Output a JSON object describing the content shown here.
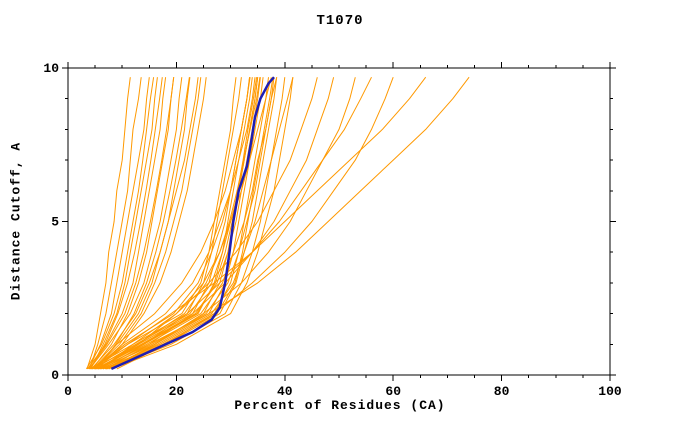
{
  "chart_data": {
    "type": "line",
    "title": "T1070",
    "xlabel": "Percent of Residues (CA)",
    "ylabel": "Distance Cutoff, A",
    "xlim": [
      0,
      100
    ],
    "ylim": [
      0,
      10
    ],
    "x_major_ticks": [
      0,
      20,
      40,
      60,
      80,
      100
    ],
    "x_minor_step": 5,
    "y_major_ticks": [
      0,
      5,
      10
    ],
    "y_minor_step": 1,
    "grid": false,
    "legend": "none",
    "colors": {
      "model_lines": "#ff9900",
      "median_line": "#1e1eb4",
      "frame": "#000000",
      "background": "#ffffff"
    },
    "model_lines_width": 1,
    "model_curves": {
      "y_stations": [
        0.2,
        1,
        2,
        3,
        4,
        5,
        6,
        7,
        8,
        9,
        9.7
      ],
      "x_values": [
        [
          3.5,
          5,
          6,
          7,
          7.5,
          8.5,
          9,
          10,
          10.5,
          11,
          11.5
        ],
        [
          4,
          5.5,
          7,
          8,
          9,
          10,
          11,
          11.5,
          12,
          13,
          13.5
        ],
        [
          3.8,
          6,
          8,
          9,
          10,
          11,
          12,
          13,
          14,
          14.5,
          15
        ],
        [
          4.2,
          6.5,
          9,
          10.5,
          11.5,
          12.5,
          13.5,
          14.5,
          15.5,
          16,
          16.5
        ],
        [
          3.6,
          7,
          10,
          12,
          13,
          14,
          15,
          16,
          17,
          17.5,
          18
        ],
        [
          4.5,
          8,
          11,
          13,
          14.5,
          15.5,
          16.5,
          17.5,
          18.5,
          19,
          19.5
        ],
        [
          4,
          7.5,
          11.5,
          14,
          15.5,
          17,
          18,
          19,
          20,
          20.5,
          21
        ],
        [
          5,
          9,
          13,
          15.5,
          17,
          18.5,
          19.5,
          20.5,
          21.5,
          22,
          22.5
        ],
        [
          4.3,
          8.5,
          12.5,
          15,
          17,
          18.5,
          20,
          21.5,
          22.5,
          23.5,
          24
        ],
        [
          5.5,
          10,
          14,
          17,
          19,
          20.5,
          22,
          23,
          24,
          25,
          25.5
        ],
        [
          3.4,
          6.2,
          8.5,
          10,
          11,
          12,
          13,
          13.8,
          14.5,
          15.2,
          15.8
        ],
        [
          4.8,
          9.5,
          13.5,
          16,
          18,
          19.5,
          21,
          22,
          23,
          24,
          24.5
        ],
        [
          3.9,
          7.2,
          10.5,
          12.5,
          14,
          15.2,
          16.3,
          17.3,
          18.2,
          19,
          19.5
        ],
        [
          4.1,
          6.8,
          9.2,
          11,
          12.3,
          13.4,
          14.4,
          15.3,
          16.1,
          16.9,
          17.4
        ],
        [
          5.2,
          8.8,
          12.2,
          14.5,
          16.2,
          17.6,
          18.8,
          19.9,
          20.9,
          21.8,
          22.4
        ],
        [
          4,
          12,
          22,
          25,
          26.5,
          27.5,
          28.5,
          29.5,
          30.5,
          31.5,
          32
        ],
        [
          5,
          14,
          24,
          27,
          28.5,
          29.5,
          30.5,
          31.5,
          32.5,
          33.5,
          34
        ],
        [
          4.5,
          13,
          23,
          26,
          27.5,
          29,
          30,
          31,
          32,
          33,
          33.5
        ],
        [
          6,
          16,
          25,
          28,
          29.5,
          30.5,
          31.5,
          32.5,
          33.5,
          34.5,
          35
        ],
        [
          5.5,
          15,
          26,
          29,
          30.5,
          31.5,
          32.5,
          33.5,
          34.5,
          35.5,
          36
        ],
        [
          4.2,
          11,
          21,
          24.5,
          26,
          27,
          28,
          29,
          30,
          30.5,
          31
        ],
        [
          6.5,
          17,
          27,
          30,
          31.5,
          32.5,
          33.5,
          34.5,
          35.5,
          36.5,
          37
        ],
        [
          5.2,
          13.5,
          23.5,
          27.5,
          29.5,
          31,
          32,
          33,
          34,
          35,
          35.5
        ],
        [
          7,
          18,
          28,
          31,
          32.5,
          34,
          35,
          36,
          37,
          38,
          38.5
        ],
        [
          4.8,
          12.5,
          22.5,
          26.5,
          28.5,
          30,
          31.5,
          32.5,
          33.5,
          34.5,
          35
        ],
        [
          6.2,
          15.5,
          25.5,
          29.5,
          31.5,
          33,
          34.5,
          35.5,
          36.5,
          37.5,
          38
        ],
        [
          5.8,
          14.5,
          24.5,
          28.5,
          30.5,
          32.5,
          34,
          35,
          36.5,
          37.5,
          38.5
        ],
        [
          7.5,
          19,
          29,
          32,
          34,
          35.5,
          36.5,
          37.5,
          38.5,
          39.5,
          40
        ],
        [
          8,
          20,
          30,
          33,
          35,
          36.5,
          38,
          39,
          40,
          41,
          41.5
        ],
        [
          5,
          10,
          18,
          23,
          26,
          28,
          30,
          31.5,
          33,
          34,
          34.5
        ],
        [
          6,
          12,
          20,
          25,
          28,
          30,
          32,
          33.5,
          35,
          36.5,
          37.5
        ],
        [
          4.6,
          9,
          16,
          21,
          24.5,
          27,
          29,
          30.5,
          32,
          33,
          33.5
        ],
        [
          7.2,
          16.5,
          26.5,
          30.5,
          32.5,
          34.5,
          36,
          37.5,
          39,
          40.5,
          41.5
        ],
        [
          5.4,
          13.8,
          23.8,
          27.2,
          29,
          30.3,
          31.3,
          32.3,
          33.2,
          34.2,
          34.8
        ],
        [
          6.8,
          17.5,
          27.5,
          30.8,
          32.2,
          33.2,
          34.2,
          35.2,
          36.2,
          37.2,
          37.8
        ],
        [
          4.4,
          10.5,
          19.5,
          24,
          26.5,
          28.5,
          30,
          31,
          32,
          33,
          33.6
        ],
        [
          5.6,
          12.8,
          21.5,
          25.5,
          28,
          29.8,
          31.2,
          32.4,
          33.6,
          34.8,
          35.4
        ],
        [
          6,
          13,
          20,
          26,
          31,
          35,
          38,
          41,
          43,
          45,
          46
        ],
        [
          7,
          15,
          23,
          29,
          34,
          38,
          41,
          44,
          46,
          48,
          49
        ],
        [
          8,
          16,
          25,
          32,
          37,
          41,
          44,
          47,
          50,
          52,
          53
        ],
        [
          6.5,
          14,
          22,
          28,
          34,
          39,
          43,
          47,
          51,
          54,
          56
        ],
        [
          9,
          18,
          27,
          34,
          40,
          45,
          49,
          53,
          56,
          58.5,
          60
        ],
        [
          5,
          11,
          19,
          27,
          34,
          40,
          46,
          52,
          58,
          63,
          66
        ],
        [
          7.5,
          16,
          26,
          35,
          42,
          48,
          54,
          60,
          66,
          71,
          74
        ]
      ]
    },
    "median": {
      "name": "median-curve",
      "color": "#1e1eb4",
      "width": 2.5,
      "points": [
        [
          8,
          0.2
        ],
        [
          13,
          0.6
        ],
        [
          18,
          1
        ],
        [
          23,
          1.4
        ],
        [
          26.5,
          1.8
        ],
        [
          28,
          2.2
        ],
        [
          29,
          3
        ],
        [
          29.8,
          4
        ],
        [
          30.5,
          5
        ],
        [
          31.5,
          6
        ],
        [
          33,
          6.8
        ],
        [
          33.8,
          7.6
        ],
        [
          34.5,
          8.4
        ],
        [
          35.5,
          9
        ],
        [
          37,
          9.5
        ],
        [
          38,
          9.7
        ]
      ]
    }
  }
}
